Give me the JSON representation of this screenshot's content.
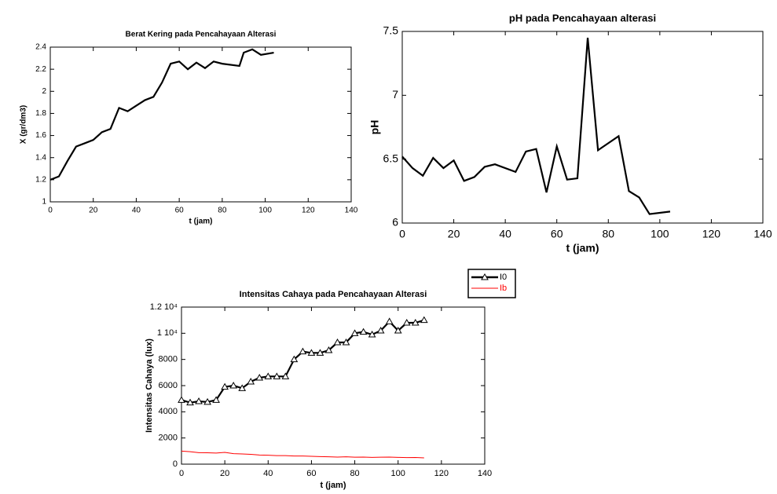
{
  "chart_data": [
    {
      "type": "line",
      "title": "Berat Kering pada Pencahayaan Alterasi",
      "x_label": "t (jam)",
      "y_label": "X (gr/dm3)",
      "x": [
        0,
        4,
        8,
        12,
        16,
        20,
        24,
        28,
        32,
        36,
        40,
        44,
        48,
        52,
        56,
        60,
        64,
        68,
        72,
        76,
        80,
        88,
        90,
        94,
        98,
        104
      ],
      "values": [
        1.2,
        1.23,
        1.37,
        1.5,
        1.53,
        1.56,
        1.63,
        1.66,
        1.85,
        1.82,
        1.87,
        1.92,
        1.95,
        2.08,
        2.25,
        2.27,
        2.2,
        2.26,
        2.21,
        2.27,
        2.25,
        2.23,
        2.35,
        2.38,
        2.33,
        2.35
      ],
      "color": "#000000",
      "xlim": [
        0,
        140
      ],
      "xticks": [
        0,
        20,
        40,
        60,
        80,
        100,
        120,
        140
      ],
      "ylim": [
        1,
        2.4
      ],
      "yticks": [
        1,
        1.2,
        1.4,
        1.6,
        1.8,
        2,
        2.2,
        2.4
      ]
    },
    {
      "type": "line",
      "title": "pH pada Pencahayaan alterasi",
      "x_label": "t (jam)",
      "y_label": "pH",
      "x": [
        0,
        4,
        8,
        12,
        16,
        20,
        24,
        28,
        32,
        36,
        44,
        48,
        52,
        56,
        60,
        64,
        68,
        72,
        76,
        84,
        88,
        92,
        96,
        104
      ],
      "values": [
        6.52,
        6.43,
        6.37,
        6.51,
        6.43,
        6.49,
        6.33,
        6.36,
        6.44,
        6.46,
        6.4,
        6.56,
        6.58,
        6.24,
        6.6,
        6.34,
        6.35,
        7.45,
        6.57,
        6.68,
        6.25,
        6.2,
        6.07,
        6.09
      ],
      "color": "#000000",
      "xlim": [
        0,
        140
      ],
      "xticks": [
        0,
        20,
        40,
        60,
        80,
        100,
        120,
        140
      ],
      "ylim": [
        6,
        7.5
      ],
      "yticks": [
        6,
        6.5,
        7,
        7.5
      ]
    },
    {
      "type": "line",
      "title": "Intensitas Cahaya pada Pencahayaan Alterasi",
      "x_label": "t (jam)",
      "y_label": "Intensitas Cahaya (lux)",
      "x": [
        0,
        4,
        8,
        12,
        16,
        20,
        24,
        28,
        32,
        36,
        40,
        44,
        48,
        52,
        56,
        60,
        64,
        68,
        72,
        76,
        80,
        84,
        88,
        92,
        96,
        100,
        104,
        108,
        112
      ],
      "series": [
        {
          "name": "I0",
          "color": "#000000",
          "marker": "triangle",
          "values": [
            4900,
            4700,
            4800,
            4750,
            4900,
            5900,
            6000,
            5800,
            6300,
            6600,
            6700,
            6700,
            6700,
            8000,
            8600,
            8500,
            8500,
            8700,
            9300,
            9300,
            10000,
            10100,
            9900,
            10200,
            10900,
            10200,
            10800,
            10800,
            11000
          ]
        },
        {
          "name": "Ib",
          "color": "#ff0000",
          "values": [
            1000,
            950,
            880,
            870,
            850,
            900,
            800,
            780,
            750,
            700,
            680,
            650,
            650,
            620,
            620,
            600,
            580,
            560,
            540,
            560,
            530,
            540,
            520,
            530,
            540,
            520,
            500,
            510,
            480
          ]
        }
      ],
      "legend_position": "top right",
      "xlim": [
        0,
        140
      ],
      "xticks": [
        0,
        20,
        40,
        60,
        80,
        100,
        120,
        140
      ],
      "ylim": [
        0,
        12000
      ],
      "yticks": [
        0,
        2000,
        4000,
        6000,
        8000,
        {
          "value": 10000,
          "label": "1 10⁴"
        },
        {
          "value": 12000,
          "label": "1.2 10⁴"
        }
      ]
    }
  ]
}
